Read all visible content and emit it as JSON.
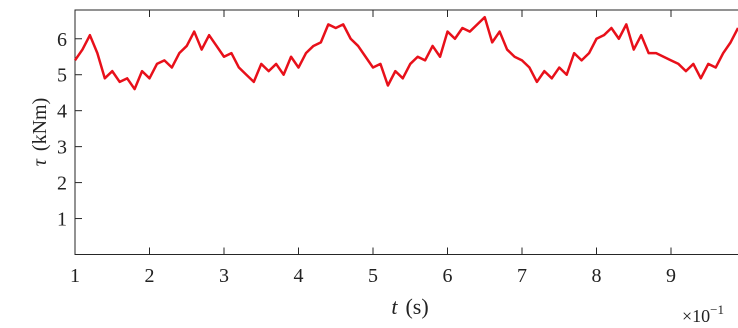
{
  "chart_data": {
    "type": "line",
    "ylabel_symbol": "τ",
    "ylabel_unit": "(kNm)",
    "xlabel_symbol": "t",
    "xlabel_unit": "(s)",
    "x_multiplier": "×10",
    "x_exponent": "−1",
    "x": [
      1.0,
      1.1,
      1.2,
      1.3,
      1.4,
      1.5,
      1.6,
      1.7,
      1.8,
      1.9,
      2.0,
      2.1,
      2.2,
      2.3,
      2.4,
      2.5,
      2.6,
      2.7,
      2.8,
      2.9,
      3.0,
      3.1,
      3.2,
      3.3,
      3.4,
      3.5,
      3.6,
      3.7,
      3.8,
      3.9,
      4.0,
      4.1,
      4.2,
      4.3,
      4.4,
      4.5,
      4.6,
      4.7,
      4.8,
      4.9,
      5.0,
      5.1,
      5.2,
      5.3,
      5.4,
      5.5,
      5.6,
      5.7,
      5.8,
      5.9,
      6.0,
      6.1,
      6.2,
      6.3,
      6.4,
      6.5,
      6.6,
      6.7,
      6.8,
      6.9,
      7.0,
      7.1,
      7.2,
      7.3,
      7.4,
      7.5,
      7.6,
      7.7,
      7.8,
      7.9,
      8.0,
      8.1,
      8.2,
      8.3,
      8.4,
      8.5,
      8.6,
      8.7,
      8.8,
      8.9,
      9.0,
      9.1,
      9.2,
      9.3,
      9.4,
      9.5,
      9.6,
      9.7,
      9.8,
      9.9
    ],
    "series": [
      {
        "color": "#e8101a",
        "values": [
          5.4,
          5.7,
          6.1,
          5.6,
          4.9,
          5.1,
          4.8,
          4.9,
          4.6,
          5.1,
          4.9,
          5.3,
          5.4,
          5.2,
          5.6,
          5.8,
          6.2,
          5.7,
          6.1,
          5.8,
          5.5,
          5.6,
          5.2,
          5.0,
          4.8,
          5.3,
          5.1,
          5.3,
          5.0,
          5.5,
          5.2,
          5.6,
          5.8,
          5.9,
          6.4,
          6.3,
          6.4,
          6.0,
          5.8,
          5.5,
          5.2,
          5.3,
          4.7,
          5.1,
          4.9,
          5.3,
          5.5,
          5.4,
          5.8,
          5.5,
          6.2,
          6.0,
          6.3,
          6.2,
          6.4,
          6.6,
          5.9,
          6.2,
          5.7,
          5.5,
          5.4,
          5.2,
          4.8,
          5.1,
          4.9,
          5.2,
          5.0,
          5.6,
          5.4,
          5.6,
          6.0,
          6.1,
          6.3,
          6.0,
          6.4,
          5.7,
          6.1,
          5.6,
          5.6,
          5.5,
          5.4,
          5.3,
          5.1,
          5.3,
          4.9,
          5.3,
          5.2,
          5.6,
          5.9,
          6.3
        ]
      }
    ],
    "xlim": [
      1,
      10
    ],
    "xticks": [
      1,
      2,
      3,
      4,
      5,
      6,
      7,
      8,
      9
    ],
    "ylim": [
      0,
      6.8
    ],
    "yticks": [
      1,
      2,
      3,
      4,
      5,
      6
    ]
  }
}
